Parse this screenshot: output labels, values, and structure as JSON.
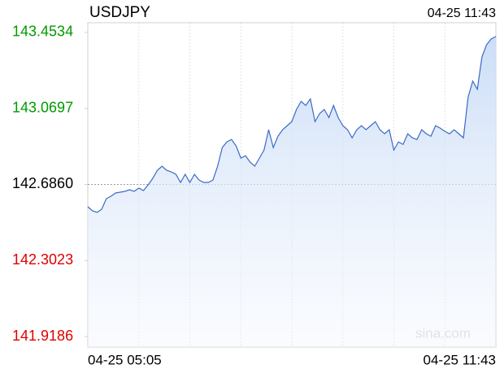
{
  "chart_data": {
    "type": "line",
    "title": "USDJPY",
    "timestamp": "04-25 11:43",
    "watermark": "sina.com",
    "categories": [
      "04-25 05:05",
      null,
      null,
      null,
      null,
      null,
      null,
      null,
      null,
      null,
      null,
      null,
      null,
      null,
      null,
      null,
      null,
      null,
      null,
      null,
      null,
      null,
      null,
      null,
      null,
      null,
      null,
      null,
      null,
      null,
      null,
      null,
      null,
      null,
      null,
      null,
      null,
      null,
      null,
      null,
      null,
      null,
      null,
      null,
      null,
      null,
      null,
      null,
      null,
      null,
      null,
      null,
      null,
      null,
      null,
      null,
      null,
      null,
      null,
      null,
      null,
      null,
      null,
      null,
      null,
      null,
      null,
      null,
      null,
      null,
      null,
      null,
      null,
      null,
      null,
      null,
      null,
      null,
      null,
      null,
      null,
      null,
      null,
      null,
      null,
      null,
      null,
      null,
      "04-25 11:43"
    ],
    "series": [
      {
        "name": "USDJPY",
        "color": "#3a6bc4",
        "values": [
          142.5734,
          142.5529,
          142.5448,
          142.5611,
          142.6143,
          142.6266,
          142.643,
          142.6471,
          142.6512,
          142.6594,
          142.6512,
          142.6675,
          142.6553,
          142.6839,
          142.7167,
          142.7576,
          142.7781,
          142.7576,
          142.7494,
          142.7371,
          142.6962,
          142.7371,
          142.6962,
          142.7371,
          142.7085,
          142.6962,
          142.6962,
          142.7085,
          142.7781,
          142.8722,
          142.9008,
          142.9131,
          142.8804,
          142.819,
          142.8313,
          142.7985,
          142.7781,
          142.819,
          142.8599,
          142.9622,
          142.8722,
          142.9295,
          142.9622,
          142.9827,
          143.0032,
          143.0646,
          143.1055,
          143.085,
          143.1178,
          143.0032,
          143.0441,
          143.0646,
          143.0236,
          143.085,
          143.0236,
          142.9827,
          142.9622,
          142.9213,
          142.9622,
          142.9827,
          142.9622,
          142.9827,
          143.0032,
          142.9622,
          142.9418,
          142.9622,
          142.8599,
          142.9008,
          142.8886,
          142.9418,
          142.9213,
          142.9131,
          142.9622,
          142.9418,
          142.9295,
          142.9827,
          142.9704,
          142.9541,
          142.9418,
          142.9622,
          142.9418,
          142.9213,
          143.126,
          143.2078,
          143.1669,
          143.3306,
          143.392,
          143.4207,
          143.4329
        ]
      }
    ],
    "ylim": [
      141.8654,
      143.5025
    ],
    "yticks": [
      143.4534,
      143.0697,
      {
        "value": 142.686,
        "label": "142.6860"
      },
      142.3023,
      141.9186
    ],
    "reference_line": 142.686,
    "up_color": "#009a00",
    "down_color": "#e00000",
    "grid": true
  }
}
